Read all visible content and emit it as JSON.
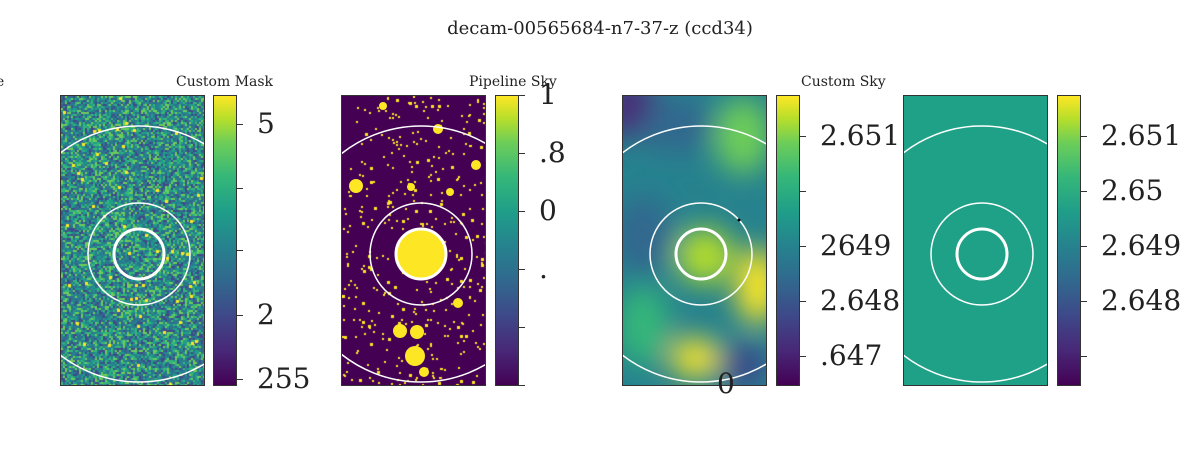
{
  "figure_title": "decam-00565684-n7-37-z (ccd34)",
  "colors": {
    "viridis_dark": "#440154",
    "viridis_teal": "#1fa187",
    "viridis_yellow": "#fde725",
    "ring": "#ffffff"
  },
  "chart_data": [
    {
      "type": "heatmap",
      "title": "Custom Mask",
      "colorbar_ticks": [
        {
          "label": "5",
          "fraction": 0.9
        },
        {
          "label": "",
          "fraction": 0.68
        },
        {
          "label": "",
          "fraction": 0.465
        },
        {
          "label": "2",
          "fraction": 0.24
        },
        {
          "label": "255",
          "fraction": 0.02
        }
      ]
    },
    {
      "type": "heatmap",
      "title": "Pipeline Sky",
      "colorbar_ticks": [
        {
          "label": "1",
          "fraction": 1.0
        },
        {
          "label": ".8",
          "fraction": 0.8
        },
        {
          "label": "0",
          "fraction": 0.6
        },
        {
          "label": ".",
          "fraction": 0.4
        },
        {
          "label": "",
          "fraction": 0.2
        },
        {
          "label": "",
          "fraction": 0.0
        }
      ]
    },
    {
      "type": "heatmap",
      "title": "Custom Sky",
      "annotation": "0",
      "colorbar_ticks": [
        {
          "label": "2.651",
          "fraction": 0.86
        },
        {
          "label": "",
          "fraction": 0.67
        },
        {
          "label": "2649",
          "fraction": 0.48
        },
        {
          "label": "2.648",
          "fraction": 0.29
        },
        {
          "label": ".647",
          "fraction": 0.1
        }
      ]
    },
    {
      "type": "heatmap",
      "title": "",
      "colorbar_ticks": [
        {
          "label": "2.651",
          "fraction": 0.86
        },
        {
          "label": "2.65",
          "fraction": 0.67
        },
        {
          "label": "2.649",
          "fraction": 0.48
        },
        {
          "label": "2.648",
          "fraction": 0.29
        },
        {
          "label": "",
          "fraction": 0.1
        }
      ]
    }
  ],
  "edge_label": "e"
}
